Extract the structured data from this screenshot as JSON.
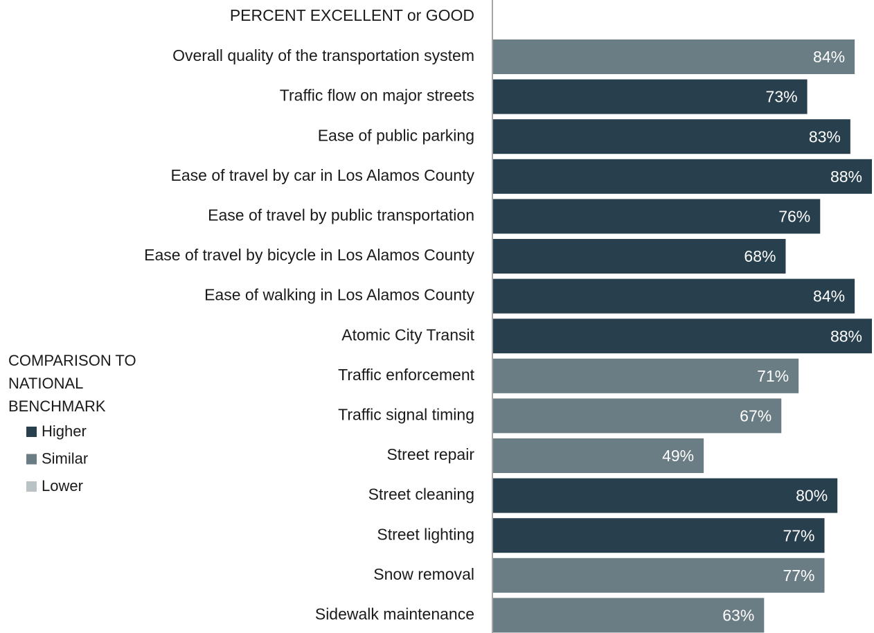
{
  "chart_data": {
    "type": "barh",
    "title": "PERCENT EXCELLENT or GOOD",
    "legend_title": "COMPARISON TO NATIONAL BENCHMARK",
    "categories": [
      "Overall quality of the transportation system",
      "Traffic flow on major streets",
      "Ease of public parking",
      "Ease of travel by car in Los Alamos County",
      "Ease of travel by public transportation",
      "Ease of travel by bicycle in Los Alamos County",
      "Ease of walking in Los Alamos County",
      "Atomic City Transit",
      "Traffic enforcement",
      "Traffic signal timing",
      "Street repair",
      "Street cleaning",
      "Street lighting",
      "Snow removal",
      "Sidewalk maintenance"
    ],
    "series": [
      {
        "name": "Higher",
        "color": "#283f4e",
        "values": [
          null,
          73,
          83,
          88,
          76,
          68,
          84,
          88,
          null,
          null,
          null,
          80,
          77,
          null,
          null
        ],
        "value_labels": [
          null,
          "73%",
          "83%",
          "88%",
          "76%",
          "68%",
          "84%",
          "88%",
          null,
          null,
          null,
          "80%",
          "77%",
          null,
          null
        ]
      },
      {
        "name": "Similar",
        "color": "#6b7d84",
        "values": [
          84,
          null,
          null,
          null,
          null,
          null,
          null,
          null,
          71,
          67,
          49,
          null,
          null,
          77,
          63
        ],
        "value_labels": [
          "84%",
          null,
          null,
          null,
          null,
          null,
          null,
          null,
          "71%",
          "67%",
          "49%",
          null,
          null,
          "77%",
          "63%"
        ]
      },
      {
        "name": "Lower",
        "color": "#b9c2c5",
        "values": [
          null,
          null,
          null,
          null,
          null,
          null,
          null,
          null,
          null,
          null,
          null,
          null,
          null,
          null,
          null
        ],
        "value_labels": [
          null,
          null,
          null,
          null,
          null,
          null,
          null,
          null,
          null,
          null,
          null,
          null,
          null,
          null,
          null
        ]
      }
    ]
  }
}
